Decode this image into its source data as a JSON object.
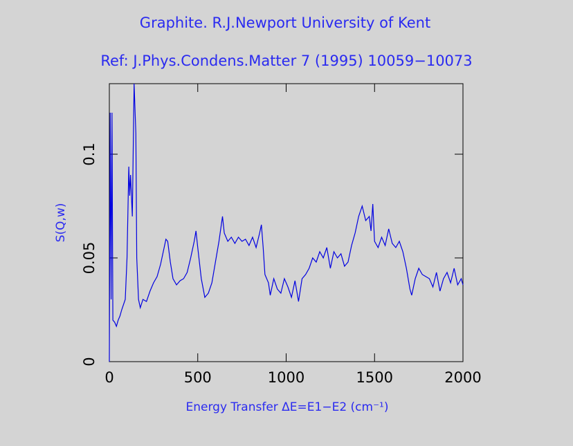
{
  "chart_data": {
    "type": "line",
    "title": "Graphite. R.J.Newport University of Kent",
    "subtitle": "Ref: J.Phys.Condens.Matter 7 (1995) 10059−10073",
    "x_label": "Energy Transfer ΔE=E1−E2 (cm⁻¹)",
    "y_label": "S(Q,w)",
    "xlim": [
      0,
      2000
    ],
    "xticks": [
      0,
      500,
      1000,
      1500,
      2000
    ],
    "ylim": [
      0,
      0.134
    ],
    "yticks": [
      0,
      0.05,
      0.1
    ],
    "series": [
      {
        "color": "#0000e0",
        "x": [
          0,
          5,
          10,
          15,
          20,
          30,
          40,
          50,
          60,
          70,
          90,
          100,
          110,
          115,
          120,
          130,
          140,
          150,
          155,
          165,
          175,
          190,
          210,
          230,
          250,
          270,
          290,
          310,
          320,
          330,
          345,
          360,
          380,
          400,
          420,
          440,
          460,
          480,
          490,
          500,
          520,
          540,
          560,
          580,
          600,
          620,
          640,
          650,
          670,
          690,
          710,
          730,
          750,
          770,
          790,
          810,
          830,
          850,
          860,
          870,
          880,
          900,
          910,
          930,
          950,
          970,
          990,
          1010,
          1030,
          1050,
          1070,
          1090,
          1110,
          1130,
          1150,
          1170,
          1190,
          1210,
          1230,
          1250,
          1270,
          1290,
          1310,
          1330,
          1350,
          1370,
          1390,
          1410,
          1430,
          1450,
          1470,
          1480,
          1490,
          1500,
          1520,
          1540,
          1560,
          1580,
          1600,
          1620,
          1640,
          1660,
          1680,
          1700,
          1710,
          1730,
          1750,
          1770,
          1790,
          1810,
          1830,
          1850,
          1870,
          1890,
          1910,
          1930,
          1950,
          1970,
          1990,
          2000
        ],
        "values": [
          0,
          0.12,
          0.03,
          0.12,
          0.02,
          0.019,
          0.017,
          0.02,
          0.022,
          0.025,
          0.03,
          0.05,
          0.094,
          0.08,
          0.09,
          0.07,
          0.134,
          0.11,
          0.05,
          0.03,
          0.026,
          0.03,
          0.029,
          0.034,
          0.038,
          0.041,
          0.047,
          0.055,
          0.059,
          0.058,
          0.048,
          0.04,
          0.037,
          0.039,
          0.04,
          0.043,
          0.05,
          0.058,
          0.063,
          0.055,
          0.04,
          0.031,
          0.033,
          0.038,
          0.048,
          0.058,
          0.07,
          0.062,
          0.058,
          0.06,
          0.057,
          0.06,
          0.058,
          0.059,
          0.056,
          0.06,
          0.055,
          0.062,
          0.066,
          0.055,
          0.042,
          0.038,
          0.032,
          0.04,
          0.035,
          0.033,
          0.04,
          0.036,
          0.031,
          0.039,
          0.029,
          0.04,
          0.042,
          0.045,
          0.05,
          0.048,
          0.053,
          0.05,
          0.055,
          0.045,
          0.053,
          0.05,
          0.052,
          0.046,
          0.048,
          0.056,
          0.062,
          0.07,
          0.075,
          0.068,
          0.07,
          0.063,
          0.076,
          0.058,
          0.055,
          0.06,
          0.056,
          0.064,
          0.057,
          0.055,
          0.058,
          0.053,
          0.045,
          0.035,
          0.032,
          0.04,
          0.045,
          0.042,
          0.041,
          0.04,
          0.036,
          0.043,
          0.034,
          0.04,
          0.043,
          0.038,
          0.045,
          0.037,
          0.04,
          0.037
        ]
      }
    ]
  }
}
